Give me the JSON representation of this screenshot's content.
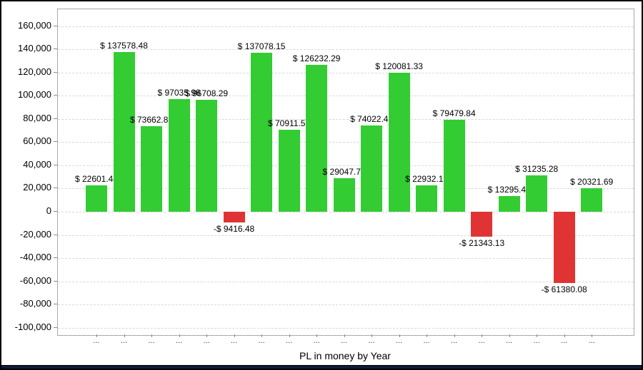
{
  "chart_data": {
    "type": "bar",
    "title": "PL in money by Year",
    "x_tick_label": "...",
    "y_axis": {
      "min": -100000,
      "max": 160000,
      "step": 20000,
      "tick_labels": [
        "160,000",
        "140,000",
        "120,000",
        "100,000",
        "80,000",
        "60,000",
        "40,000",
        "20,000",
        "0",
        "-20,000",
        "-40,000",
        "-60,000",
        "-80,000",
        "-100,000"
      ]
    },
    "bars": [
      {
        "value": 22601.44,
        "label": "$ 22601.44"
      },
      {
        "value": 137578.48,
        "label": "$ 137578.48"
      },
      {
        "value": 73662.85,
        "label": "$ 73662.85"
      },
      {
        "value": 97035.98,
        "label": "$ 97035.98"
      },
      {
        "value": 96708.29,
        "label": "$ 96708.29"
      },
      {
        "value": -9416.48,
        "label": "-$ 9416.48"
      },
      {
        "value": 137078.15,
        "label": "$ 137078.15"
      },
      {
        "value": 70911.55,
        "label": "$ 70911.55"
      },
      {
        "value": 126232.29,
        "label": "$ 126232.29"
      },
      {
        "value": 29047.73,
        "label": "$ 29047.73"
      },
      {
        "value": 74022.45,
        "label": "$ 74022.45"
      },
      {
        "value": 120081.33,
        "label": "$ 120081.33"
      },
      {
        "value": 22932.15,
        "label": "$ 22932.15"
      },
      {
        "value": 79479.84,
        "label": "$ 79479.84"
      },
      {
        "value": -21343.13,
        "label": "-$ 21343.13"
      },
      {
        "value": 13295.45,
        "label": "$ 13295.45"
      },
      {
        "value": 31235.28,
        "label": "$ 31235.28"
      },
      {
        "value": -61380.08,
        "label": "-$ 61380.08"
      },
      {
        "value": 20321.69,
        "label": "$ 20321.69"
      }
    ],
    "colors": {
      "positive": "#33CC33",
      "negative": "#E03434"
    },
    "layout": {
      "grid": "horizontal-dashed",
      "legend": "none"
    }
  }
}
